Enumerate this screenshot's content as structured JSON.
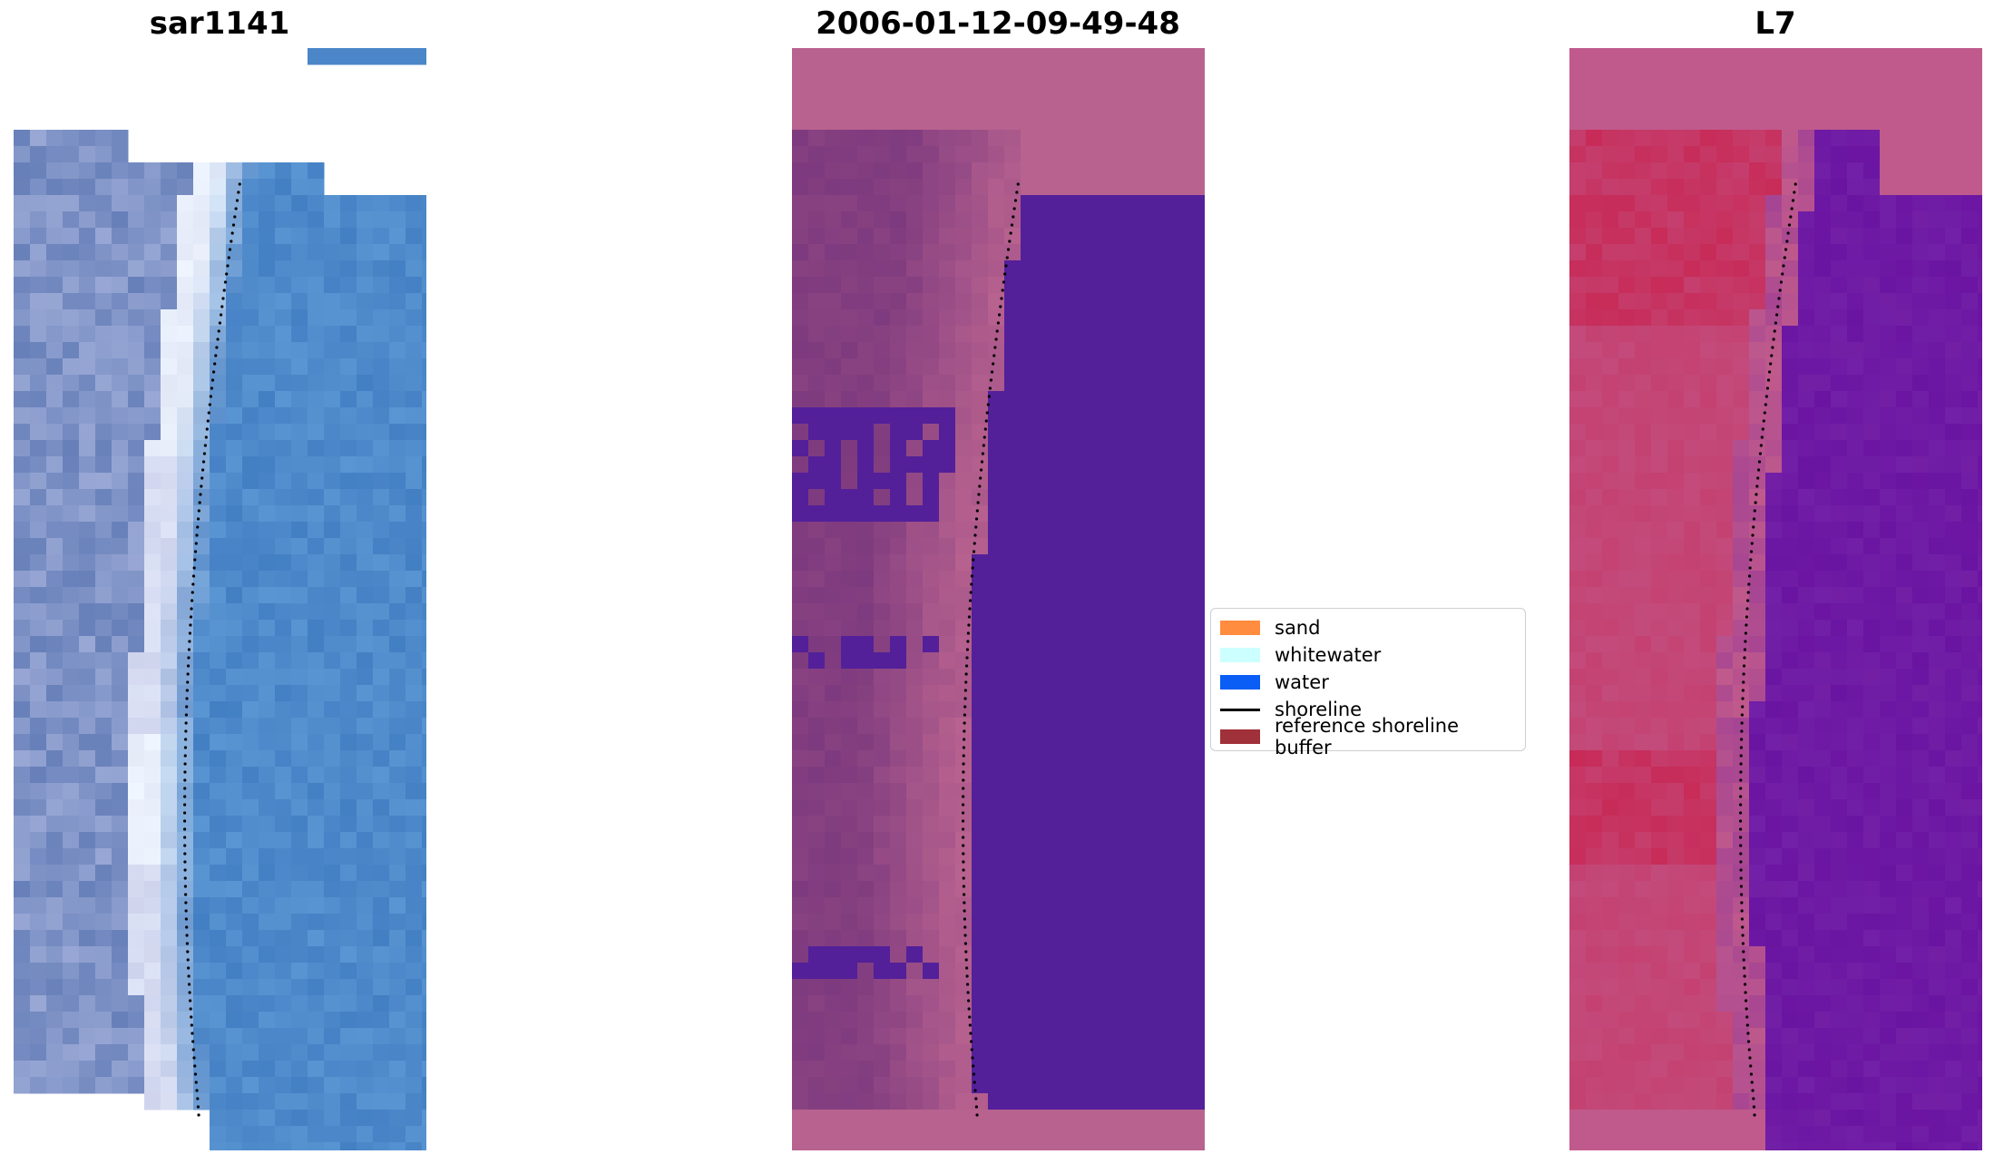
{
  "panels": [
    {
      "title": "sar1141",
      "kind": "rgb"
    },
    {
      "title": "2006-01-12-09-49-48",
      "kind": "classified"
    },
    {
      "title": "L7",
      "kind": "index"
    }
  ],
  "legend": {
    "items": [
      {
        "label": "sand",
        "type": "patch",
        "color": "#ff8c3f"
      },
      {
        "label": "whitewater",
        "type": "patch",
        "color": "#ccffff"
      },
      {
        "label": "water",
        "type": "patch",
        "color": "#0a5ef5"
      },
      {
        "label": "shoreline",
        "type": "line",
        "color": "#000000"
      },
      {
        "label": "reference shoreline buffer",
        "type": "patch",
        "color": "#a0303a"
      }
    ]
  },
  "colors": {
    "rgb_water": "#4a86c8",
    "rgb_surf": "#e8eefa",
    "class_water": "#53209a",
    "class_land": "#b8628f",
    "class_land_dark": "#7d3a7e",
    "index_water": "#6a14a2",
    "index_land": "#c9234f",
    "index_mid": "#c05a8c"
  }
}
